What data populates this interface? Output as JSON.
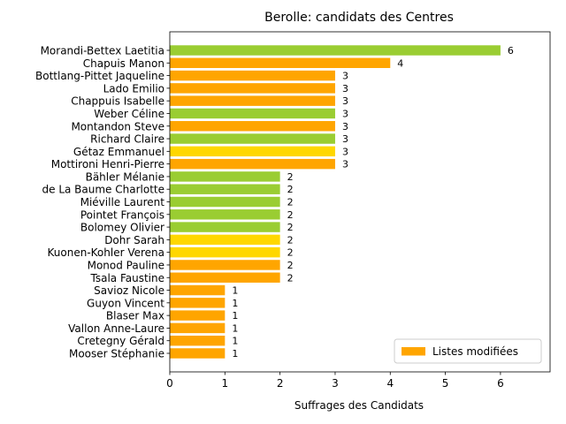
{
  "chart_data": {
    "type": "bar",
    "orientation": "horizontal",
    "title": "Berolle: candidats des Centres",
    "xlabel": "Suffrages des Candidats",
    "ylabel": "",
    "xlim": [
      0,
      6.9
    ],
    "xticks": [
      0,
      1,
      2,
      3,
      4,
      5,
      6
    ],
    "grid": false,
    "legend_position": "bottom-right",
    "legend": [
      {
        "label": "Listes modifiées",
        "color": "#ffa500"
      }
    ],
    "categories": [
      "Morandi-Bettex Laetitia",
      "Chapuis Manon",
      "Bottlang-Pittet Jaqueline",
      "Lado Emilio",
      "Chappuis Isabelle",
      "Weber Céline",
      "Montandon Steve",
      "Richard Claire",
      "Gétaz Emmanuel",
      "Mottironi Henri-Pierre",
      "Bähler Mélanie",
      "de La Baume Charlotte",
      "Miéville Laurent",
      "Pointet François",
      "Bolomey Olivier",
      "Dohr Sarah",
      "Kuonen-Kohler Verena",
      "Monod Pauline",
      "Tsala Faustine",
      "Savioz Nicole",
      "Guyon Vincent",
      "Blaser Max",
      "Vallon Anne-Laure",
      "Cretegny Gérald",
      "Mooser Stéphanie"
    ],
    "values": [
      6,
      4,
      3,
      3,
      3,
      3,
      3,
      3,
      3,
      3,
      2,
      2,
      2,
      2,
      2,
      2,
      2,
      2,
      2,
      1,
      1,
      1,
      1,
      1,
      1
    ],
    "value_labels": [
      "6",
      "4",
      "3",
      "3",
      "3",
      "3",
      "3",
      "3",
      "3",
      "3",
      "2",
      "2",
      "2",
      "2",
      "2",
      "2",
      "2",
      "2",
      "2",
      "1",
      "1",
      "1",
      "1",
      "1",
      "1"
    ],
    "bar_colors": [
      "#9acd32",
      "#ffa500",
      "#ffa500",
      "#ffa500",
      "#ffa500",
      "#9acd32",
      "#ffa500",
      "#9acd32",
      "#ffd700",
      "#ffa500",
      "#9acd32",
      "#9acd32",
      "#9acd32",
      "#9acd32",
      "#9acd32",
      "#ffd700",
      "#ffd700",
      "#ffa500",
      "#ffa500",
      "#ffa500",
      "#ffa500",
      "#ffa500",
      "#ffa500",
      "#ffa500",
      "#ffa500"
    ]
  }
}
